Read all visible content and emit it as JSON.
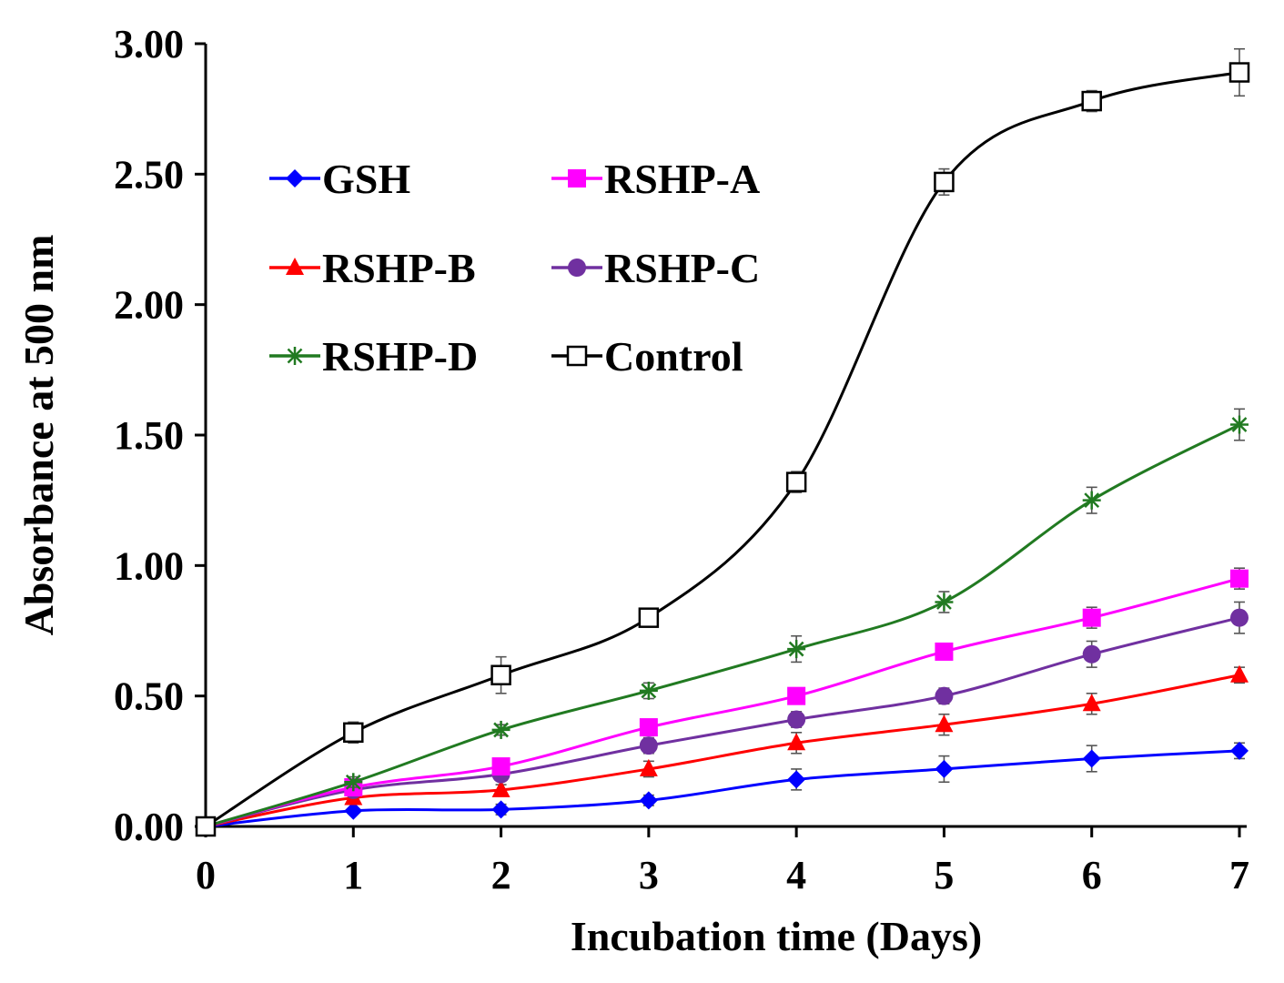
{
  "chart_data": {
    "type": "line",
    "title": "",
    "xlabel": "Incubation time (Days)",
    "ylabel": "Absorbance at 500 nm",
    "x": [
      0,
      1,
      2,
      3,
      4,
      5,
      6,
      7
    ],
    "xticks": [
      "0",
      "1",
      "2",
      "3",
      "4",
      "5",
      "6",
      "7"
    ],
    "yticks": [
      "0.00",
      "0.50",
      "1.00",
      "1.50",
      "2.00",
      "2.50",
      "3.00"
    ],
    "xlim": [
      0,
      7
    ],
    "ylim": [
      0,
      3
    ],
    "grid": false,
    "legend_position": "top-left",
    "series": [
      {
        "name": "GSH",
        "color": "#0000ff",
        "marker": "diamond",
        "values": [
          0.0,
          0.06,
          0.065,
          0.1,
          0.18,
          0.22,
          0.26,
          0.29
        ],
        "errors": [
          0,
          0.01,
          0.02,
          0.02,
          0.04,
          0.05,
          0.05,
          0.03
        ]
      },
      {
        "name": "RSHP-A",
        "color": "#ff00ff",
        "marker": "square-filled",
        "values": [
          0.0,
          0.15,
          0.23,
          0.38,
          0.5,
          0.67,
          0.8,
          0.95
        ],
        "errors": [
          0,
          0.02,
          0.02,
          0.03,
          0.03,
          0.03,
          0.04,
          0.04
        ]
      },
      {
        "name": "RSHP-B",
        "color": "#ff0000",
        "marker": "triangle",
        "values": [
          0.0,
          0.11,
          0.14,
          0.22,
          0.32,
          0.39,
          0.47,
          0.58
        ],
        "errors": [
          0,
          0.02,
          0.02,
          0.03,
          0.04,
          0.04,
          0.04,
          0.03
        ]
      },
      {
        "name": "RSHP-C",
        "color": "#7030a0",
        "marker": "circle",
        "values": [
          0.0,
          0.14,
          0.2,
          0.31,
          0.41,
          0.5,
          0.66,
          0.8
        ],
        "errors": [
          0,
          0.02,
          0.02,
          0.03,
          0.03,
          0.03,
          0.05,
          0.06
        ]
      },
      {
        "name": "RSHP-D",
        "color": "#217a21",
        "marker": "star",
        "values": [
          0.0,
          0.17,
          0.37,
          0.52,
          0.68,
          0.86,
          1.25,
          1.54
        ],
        "errors": [
          0,
          0.02,
          0.02,
          0.03,
          0.05,
          0.04,
          0.05,
          0.06
        ]
      },
      {
        "name": "Control",
        "color": "#000000",
        "marker": "square-open",
        "values": [
          0.0,
          0.36,
          0.58,
          0.8,
          1.32,
          2.47,
          2.78,
          2.89
        ],
        "errors": [
          0,
          0.04,
          0.07,
          0.03,
          0.04,
          0.05,
          0.04,
          0.09
        ]
      }
    ]
  }
}
